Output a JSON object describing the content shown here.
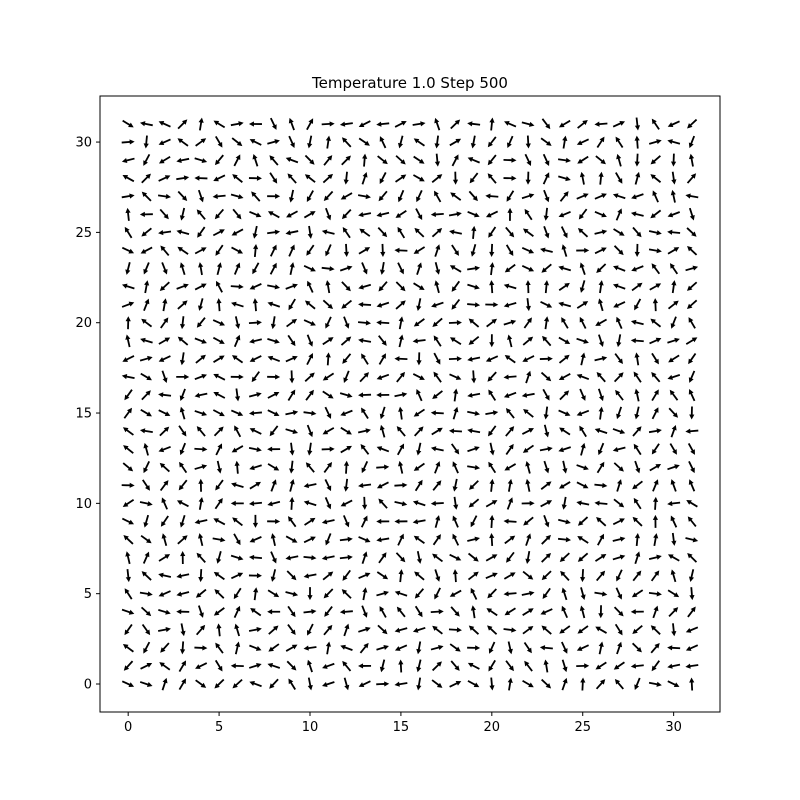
{
  "chart_data": {
    "type": "quiver",
    "title": "Temperature 1.0 Step 500",
    "xlabel": "",
    "ylabel": "",
    "grid": false,
    "xlim": [
      -1.55,
      32.55
    ],
    "ylim": [
      -1.55,
      32.55
    ],
    "xticks": [
      0,
      5,
      10,
      15,
      20,
      25,
      30
    ],
    "yticks": [
      0,
      5,
      10,
      15,
      20,
      25,
      30
    ],
    "lattice": {
      "nx": 32,
      "ny": 32,
      "x_start": 0,
      "y_start": 0,
      "spacing": 1
    },
    "arrow_color": "#000000",
    "angles_description": "random spin angles at each lattice site"
  }
}
